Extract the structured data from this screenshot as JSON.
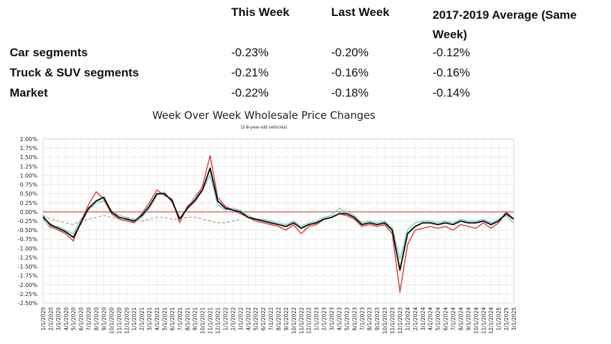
{
  "table": {
    "header": [
      "This Week",
      "Last Week",
      "2017-2019 Average (Same Week)"
    ],
    "rows": [
      [
        "Car segments",
        "-0.23%",
        "-0.20%",
        "-0.12%"
      ],
      [
        "Truck & SUV segments",
        "-0.21%",
        "-0.16%",
        "-0.16%"
      ],
      [
        "Market",
        "-0.22%",
        "-0.18%",
        "-0.14%"
      ]
    ]
  },
  "chart_data": {
    "type": "line",
    "title": "Week Over Week Wholesale Price Changes",
    "subtitle": "(2-8-year-old vehicles)",
    "categories": [
      "1/1/2020",
      "2/1/2020",
      "3/1/2020",
      "4/1/2020",
      "5/1/2020",
      "6/1/2020",
      "7/1/2020",
      "8/1/2020",
      "9/1/2020",
      "10/1/2020",
      "11/1/2020",
      "12/1/2020",
      "1/1/2021",
      "2/1/2021",
      "3/1/2021",
      "4/1/2021",
      "5/1/2021",
      "6/1/2021",
      "7/1/2021",
      "8/1/2021",
      "9/1/2021",
      "10/1/2021",
      "11/1/2021",
      "12/1/2021",
      "1/1/2022",
      "2/1/2022",
      "3/1/2022",
      "4/1/2022",
      "5/1/2022",
      "6/1/2022",
      "7/1/2022",
      "8/1/2022",
      "9/1/2022",
      "10/1/2022",
      "11/1/2022",
      "12/1/2022",
      "1/1/2023",
      "2/1/2023",
      "3/1/2023",
      "4/1/2023",
      "5/1/2023",
      "6/1/2023",
      "7/1/2023",
      "8/1/2023",
      "9/1/2023",
      "10/1/2023",
      "11/1/2023",
      "12/1/2023",
      "1/1/2024",
      "2/1/2024",
      "3/1/2024",
      "4/1/2024",
      "5/1/2024",
      "6/1/2024",
      "7/1/2024",
      "8/1/2024",
      "9/1/2024",
      "10/1/2024",
      "11/1/2024",
      "12/1/2024",
      "1/1/2025",
      "2/1/2025",
      "3/1/2025"
    ],
    "series": [
      {
        "color": "#7fd8c8",
        "values": [
          -0.2,
          -0.45,
          -0.4,
          -0.5,
          -0.6,
          -0.2,
          0.05,
          0.25,
          0.3,
          0.05,
          -0.1,
          -0.15,
          -0.3,
          -0.15,
          0.1,
          0.45,
          0.55,
          0.25,
          -0.15,
          0.05,
          0.45,
          0.6,
          1.0,
          0.2,
          0.05,
          0.1,
          0.05,
          -0.1,
          -0.2,
          -0.2,
          -0.25,
          -0.3,
          -0.35,
          -0.25,
          -0.4,
          -0.3,
          -0.25,
          -0.15,
          -0.1,
          0.1,
          0.0,
          -0.1,
          -0.3,
          -0.25,
          -0.3,
          -0.25,
          -0.45,
          -1.3,
          -0.5,
          -0.3,
          -0.25,
          -0.25,
          -0.3,
          -0.25,
          -0.3,
          -0.2,
          -0.25,
          -0.25,
          -0.2,
          -0.3,
          -0.2,
          -0.1,
          -0.3
        ]
      },
      {
        "color": "#e04848",
        "values": [
          -0.1,
          -0.4,
          -0.5,
          -0.6,
          -0.8,
          -0.25,
          0.2,
          0.55,
          0.35,
          -0.05,
          -0.2,
          -0.25,
          -0.3,
          -0.05,
          0.25,
          0.6,
          0.45,
          0.35,
          -0.3,
          0.15,
          0.35,
          0.7,
          1.55,
          0.4,
          0.15,
          0.05,
          -0.05,
          -0.15,
          -0.25,
          -0.3,
          -0.35,
          -0.4,
          -0.5,
          -0.35,
          -0.6,
          -0.4,
          -0.35,
          -0.2,
          -0.15,
          -0.05,
          -0.1,
          -0.2,
          -0.4,
          -0.35,
          -0.4,
          -0.35,
          -0.6,
          -2.2,
          -0.9,
          -0.5,
          -0.45,
          -0.4,
          -0.45,
          -0.4,
          -0.5,
          -0.35,
          -0.4,
          -0.45,
          -0.3,
          -0.45,
          -0.3,
          0.0,
          -0.2
        ]
      },
      {
        "color": "#111111",
        "values": [
          -0.15,
          -0.35,
          -0.45,
          -0.55,
          -0.7,
          -0.3,
          0.1,
          0.3,
          0.4,
          0.0,
          -0.15,
          -0.2,
          -0.25,
          -0.1,
          0.15,
          0.5,
          0.5,
          0.3,
          -0.2,
          0.1,
          0.3,
          0.6,
          1.2,
          0.3,
          0.1,
          0.05,
          0.0,
          -0.15,
          -0.2,
          -0.25,
          -0.3,
          -0.35,
          -0.4,
          -0.3,
          -0.45,
          -0.35,
          -0.3,
          -0.2,
          -0.15,
          -0.05,
          -0.05,
          -0.15,
          -0.35,
          -0.3,
          -0.35,
          -0.3,
          -0.5,
          -1.6,
          -0.6,
          -0.4,
          -0.3,
          -0.3,
          -0.35,
          -0.3,
          -0.35,
          -0.25,
          -0.3,
          -0.3,
          -0.25,
          -0.35,
          -0.25,
          -0.05,
          -0.2
        ]
      },
      {
        "color": "#888888",
        "dashed": true,
        "values": [
          -0.1,
          -0.2,
          -0.25,
          -0.3,
          -0.35,
          -0.25,
          -0.2,
          -0.15,
          -0.1,
          -0.15,
          -0.2,
          -0.15,
          -0.2,
          -0.25,
          -0.2,
          -0.15,
          -0.15,
          -0.2,
          -0.2,
          -0.15,
          -0.15,
          -0.2,
          -0.25,
          -0.3,
          -0.3,
          -0.25,
          -0.2,
          null,
          null,
          null,
          null,
          null,
          null,
          null,
          null,
          null,
          null,
          null,
          null,
          null,
          null,
          null,
          null,
          null,
          null,
          null,
          null,
          null,
          null,
          null,
          null,
          null,
          null,
          null,
          null,
          null,
          null,
          null,
          null,
          null,
          null,
          null,
          null
        ]
      }
    ],
    "reference_line": {
      "value": 0,
      "color": "#e04848"
    },
    "ylim": [
      -2.5,
      2.0
    ],
    "yticks": [
      {
        "value": 2.0,
        "label": "2.00%"
      },
      {
        "value": 1.75,
        "label": "1.75%"
      },
      {
        "value": 1.5,
        "label": "1.50%"
      },
      {
        "value": 1.25,
        "label": "1.25%"
      },
      {
        "value": 1.0,
        "label": "1.00%"
      },
      {
        "value": 0.75,
        "label": "0.75%"
      },
      {
        "value": 0.5,
        "label": "0.50%"
      },
      {
        "value": 0.25,
        "label": "0.25%"
      },
      {
        "value": 0,
        "label": "0.00%"
      },
      {
        "value": -0.25,
        "label": "-0.25%"
      },
      {
        "value": -0.5,
        "label": "-0.50%"
      },
      {
        "value": -0.75,
        "label": "-0.75%"
      },
      {
        "value": -1.0,
        "label": "-1.00%"
      },
      {
        "value": -1.25,
        "label": "-1.25%"
      },
      {
        "value": -1.5,
        "label": "-1.50%"
      },
      {
        "value": -1.75,
        "label": "-1.75%"
      },
      {
        "value": -2.0,
        "label": "-2.00%"
      },
      {
        "value": -2.25,
        "label": "-2.25%"
      },
      {
        "value": -2.5,
        "label": "-2.50%"
      }
    ],
    "grid": true
  }
}
